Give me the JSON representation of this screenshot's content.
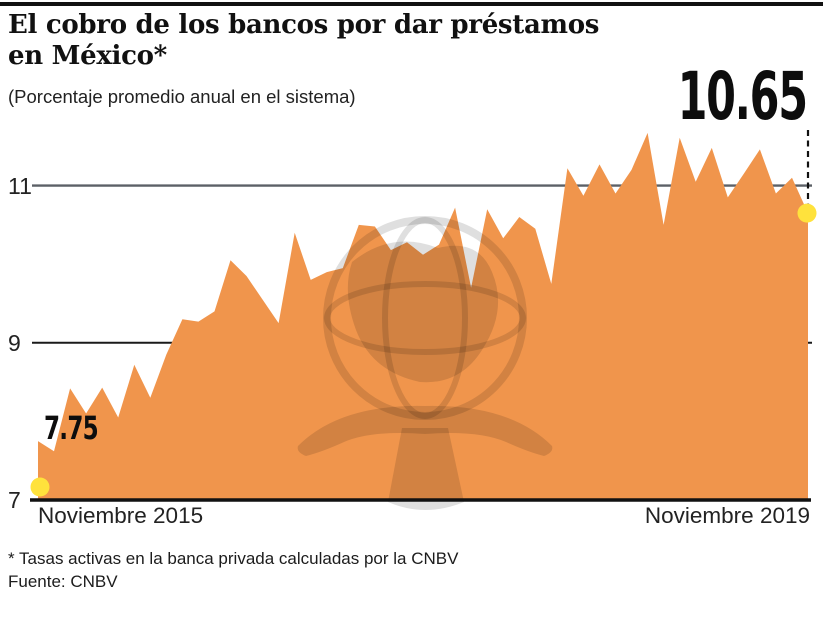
{
  "header": {
    "title_line1": "El cobro de los bancos por dar préstamos",
    "title_line2": "en México*",
    "subtitle": "(Porcentaje promedio anual en el sistema)"
  },
  "chart_data": {
    "type": "area",
    "title": "El cobro de los bancos por dar préstamos en México",
    "ylabel": "Porcentaje promedio anual en el sistema",
    "x_start_label": "Noviembre 2015",
    "x_end_label": "Noviembre 2019",
    "x_range_months": 49,
    "ylim": [
      7,
      11.8
    ],
    "y_ticks": [
      7,
      9,
      11
    ],
    "y_tick_labels": [
      "7",
      "9",
      "11"
    ],
    "grid": "horizontal",
    "start_label": "7.75",
    "end_label": "10.65",
    "start_value": 7.75,
    "end_value": 10.65,
    "values": [
      7.75,
      7.62,
      8.42,
      8.1,
      8.43,
      8.05,
      8.72,
      8.3,
      8.85,
      9.3,
      9.27,
      9.4,
      10.05,
      9.85,
      9.55,
      9.25,
      10.4,
      9.8,
      9.9,
      9.95,
      10.5,
      10.48,
      10.18,
      10.28,
      10.12,
      10.25,
      10.72,
      9.7,
      10.7,
      10.33,
      10.6,
      10.45,
      9.75,
      11.22,
      10.87,
      11.27,
      10.9,
      11.2,
      11.67,
      10.5,
      11.61,
      11.05,
      11.48,
      10.85,
      11.15,
      11.46,
      10.9,
      11.1,
      10.65
    ]
  },
  "footer": {
    "note": "* Tasas activas en la banca privada calculadas por la CNBV",
    "source": "Fuente: CNBV"
  },
  "colors": {
    "area": "#F0954C",
    "marker": "#FFE23C",
    "grid_light": "#5c6067",
    "grid_dark": "#1a1a1a",
    "axis": "#111111",
    "dashed_line": "#111111"
  }
}
